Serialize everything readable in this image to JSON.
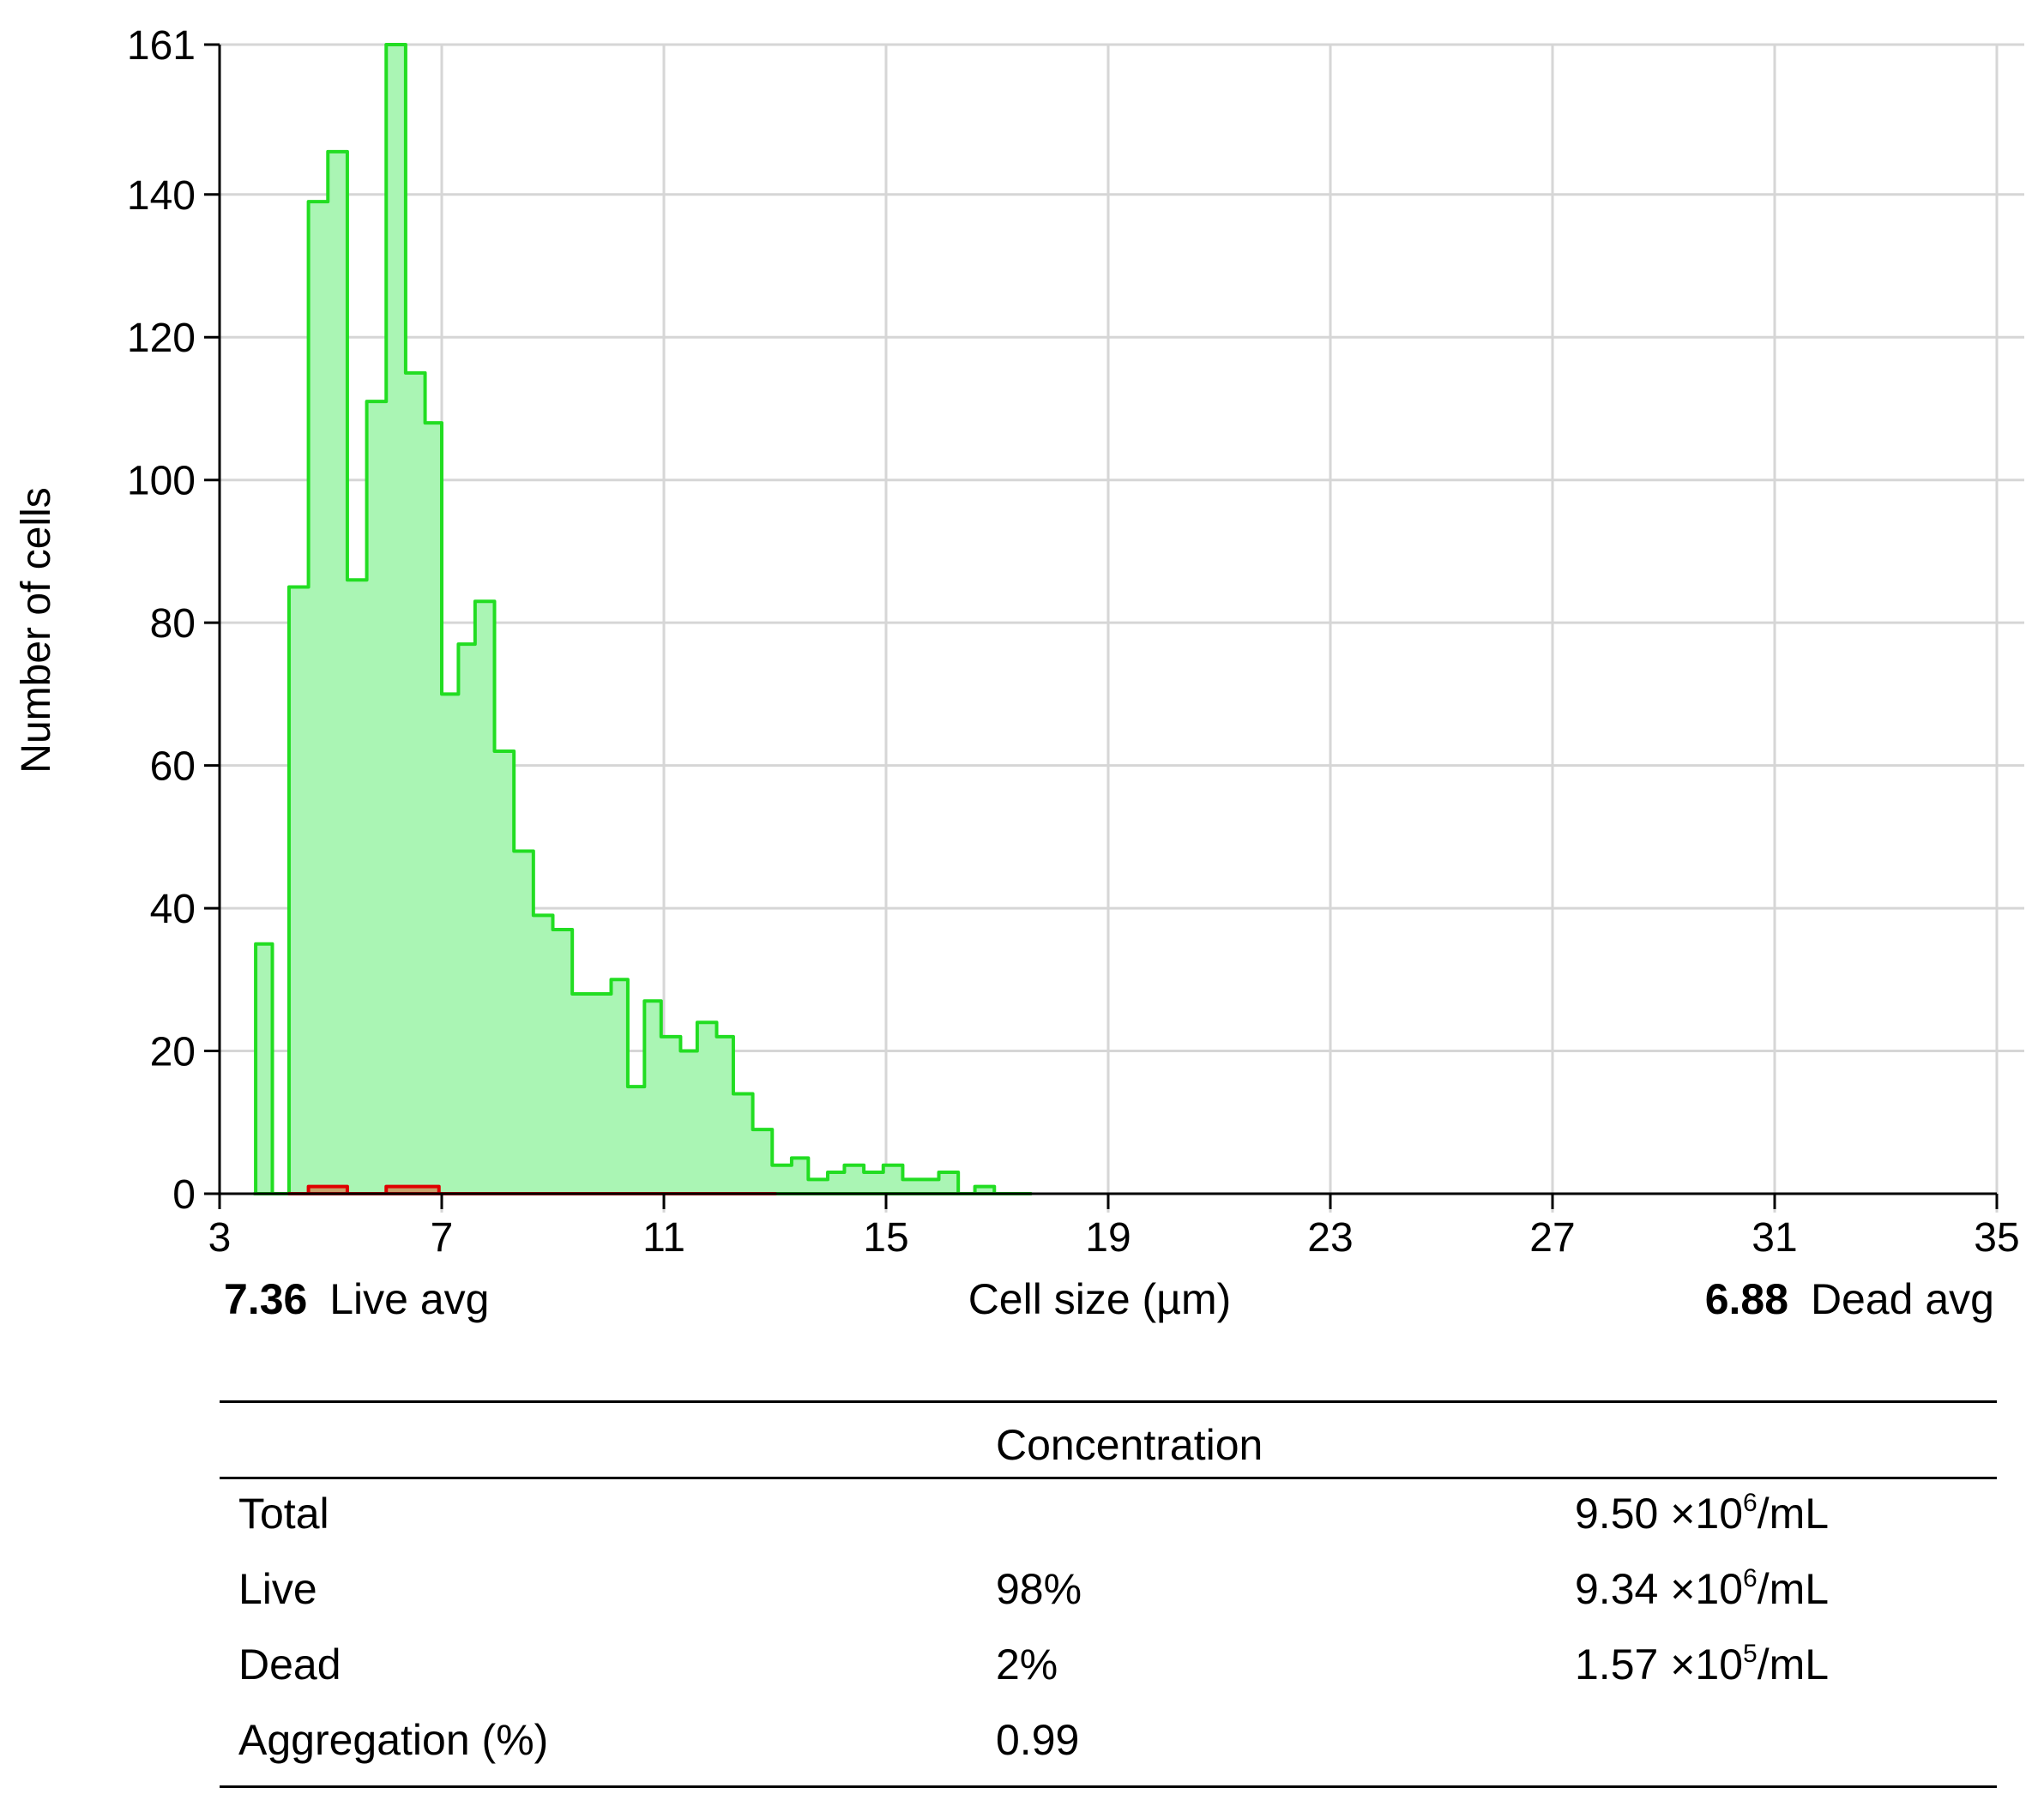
{
  "chart_data": {
    "type": "histogram",
    "xlabel": "Cell size (µm)",
    "ylabel": "Number of cells",
    "xlim": [
      3,
      35
    ],
    "ylim": [
      0,
      161
    ],
    "x_ticks": [
      "3",
      "7",
      "11",
      "15",
      "19",
      "23",
      "27",
      "31",
      "35"
    ],
    "y_ticks": [
      "0",
      "20",
      "40",
      "60",
      "80",
      "100",
      "120",
      "140",
      "161"
    ],
    "grid": true,
    "series": [
      {
        "name": "Live",
        "color": "#22dd22",
        "fill": "#aaf5b4",
        "steps": [
          [
            3.63,
            0
          ],
          [
            3.65,
            35
          ],
          [
            3.95,
            0
          ],
          [
            4.25,
            85
          ],
          [
            4.6,
            139
          ],
          [
            4.95,
            146
          ],
          [
            5.3,
            86
          ],
          [
            5.65,
            111
          ],
          [
            6.0,
            161
          ],
          [
            6.35,
            115
          ],
          [
            6.7,
            108
          ],
          [
            7.0,
            70
          ],
          [
            7.3,
            77
          ],
          [
            7.6,
            83
          ],
          [
            7.95,
            62
          ],
          [
            8.3,
            48
          ],
          [
            8.65,
            39
          ],
          [
            9.0,
            37
          ],
          [
            9.35,
            28
          ],
          [
            9.7,
            28
          ],
          [
            10.05,
            30
          ],
          [
            10.35,
            15
          ],
          [
            10.65,
            27
          ],
          [
            10.95,
            22
          ],
          [
            11.3,
            20
          ],
          [
            11.6,
            24
          ],
          [
            11.95,
            22
          ],
          [
            12.25,
            14
          ],
          [
            12.6,
            9
          ],
          [
            12.95,
            4
          ],
          [
            13.3,
            5
          ],
          [
            13.6,
            2
          ],
          [
            13.95,
            3
          ],
          [
            14.25,
            4
          ],
          [
            14.6,
            3
          ],
          [
            14.95,
            4
          ],
          [
            15.3,
            2
          ],
          [
            15.65,
            2
          ],
          [
            15.95,
            3
          ],
          [
            16.3,
            0
          ],
          [
            16.6,
            1
          ],
          [
            16.95,
            0
          ],
          [
            17.3,
            0
          ]
        ]
      },
      {
        "name": "Dead",
        "color": "#e00000",
        "fill": "#c9a06a",
        "steps": [
          [
            4.25,
            0
          ],
          [
            4.6,
            1
          ],
          [
            5.0,
            1
          ],
          [
            5.3,
            0
          ],
          [
            5.65,
            0
          ],
          [
            6.0,
            1
          ],
          [
            6.35,
            1
          ],
          [
            6.95,
            0
          ],
          [
            7.4,
            0
          ],
          [
            8.0,
            0
          ],
          [
            8.5,
            0
          ],
          [
            9.0,
            0
          ],
          [
            10.95,
            0
          ],
          [
            12.7,
            0
          ]
        ]
      }
    ],
    "live_avg_value": "7.36",
    "live_avg_label": "Live avg",
    "dead_avg_value": "6.88",
    "dead_avg_label": "Dead avg"
  },
  "table": {
    "header": "Concentration",
    "rows": [
      {
        "label": "Total",
        "pct": "",
        "base": "9.50 ×10",
        "exp": "6",
        "unit": "/mL"
      },
      {
        "label": "Live",
        "pct": "98%",
        "base": "9.34 ×10",
        "exp": "6",
        "unit": "/mL"
      },
      {
        "label": "Dead",
        "pct": "2%",
        "base": "1.57 ×10",
        "exp": "5",
        "unit": "/mL"
      },
      {
        "label": "Aggregation (%)",
        "pct": "0.99",
        "base": "",
        "exp": "",
        "unit": ""
      }
    ]
  }
}
